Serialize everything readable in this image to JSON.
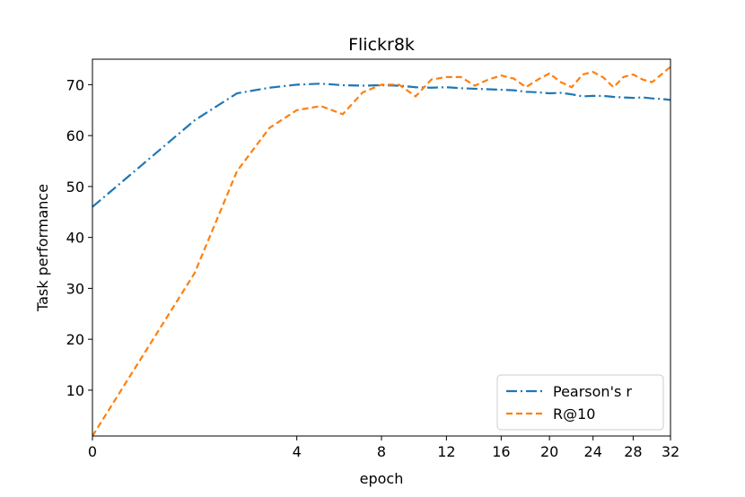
{
  "chart_data": {
    "type": "line",
    "title": "Flickr8k",
    "xlabel": "epoch",
    "ylabel": "Task performance",
    "xscale": "sqrt",
    "xlim": [
      0,
      32
    ],
    "ylim": [
      1,
      75
    ],
    "x_ticks": [
      0,
      4,
      8,
      12,
      16,
      20,
      24,
      28,
      32
    ],
    "y_ticks": [
      10,
      20,
      30,
      40,
      50,
      60,
      70
    ],
    "grid": false,
    "legend": "lower-right",
    "series": [
      {
        "name": "Pearson's r",
        "color": "#1f77b4",
        "linestyle": "dashdot",
        "x": [
          0,
          1,
          2,
          3,
          4,
          5,
          6,
          7,
          8,
          9,
          10,
          11,
          12,
          13,
          14,
          15,
          16,
          17,
          18,
          19,
          20,
          21,
          22,
          23,
          24,
          25,
          26,
          27,
          28,
          29,
          30,
          31,
          32
        ],
        "y": [
          46,
          63,
          68.3,
          69.4,
          70,
          70.2,
          69.9,
          69.8,
          69.9,
          69.8,
          69.5,
          69.4,
          69.5,
          69.3,
          69.2,
          69.1,
          69,
          68.9,
          68.6,
          68.5,
          68.3,
          68.4,
          68.1,
          67.7,
          67.8,
          67.8,
          67.6,
          67.5,
          67.4,
          67.5,
          67.3,
          67.2,
          67
        ]
      },
      {
        "name": "R@10",
        "color": "#ff7f0e",
        "linestyle": "dashed",
        "x": [
          0,
          1,
          2,
          3,
          4,
          5,
          6,
          7,
          8,
          9,
          10,
          11,
          12,
          13,
          14,
          15,
          16,
          17,
          18,
          19,
          20,
          21,
          22,
          23,
          24,
          25,
          26,
          27,
          28,
          29,
          30,
          31,
          32
        ],
        "y": [
          1,
          33,
          53,
          61.5,
          65,
          65.8,
          64.2,
          68.5,
          70,
          70,
          67.7,
          71,
          71.5,
          71.5,
          69.8,
          71,
          71.8,
          71.2,
          69.5,
          71,
          72.2,
          70.5,
          69.5,
          72,
          72.5,
          71.4,
          69.5,
          71.5,
          72,
          71,
          70.5,
          72,
          73.5
        ]
      }
    ]
  }
}
